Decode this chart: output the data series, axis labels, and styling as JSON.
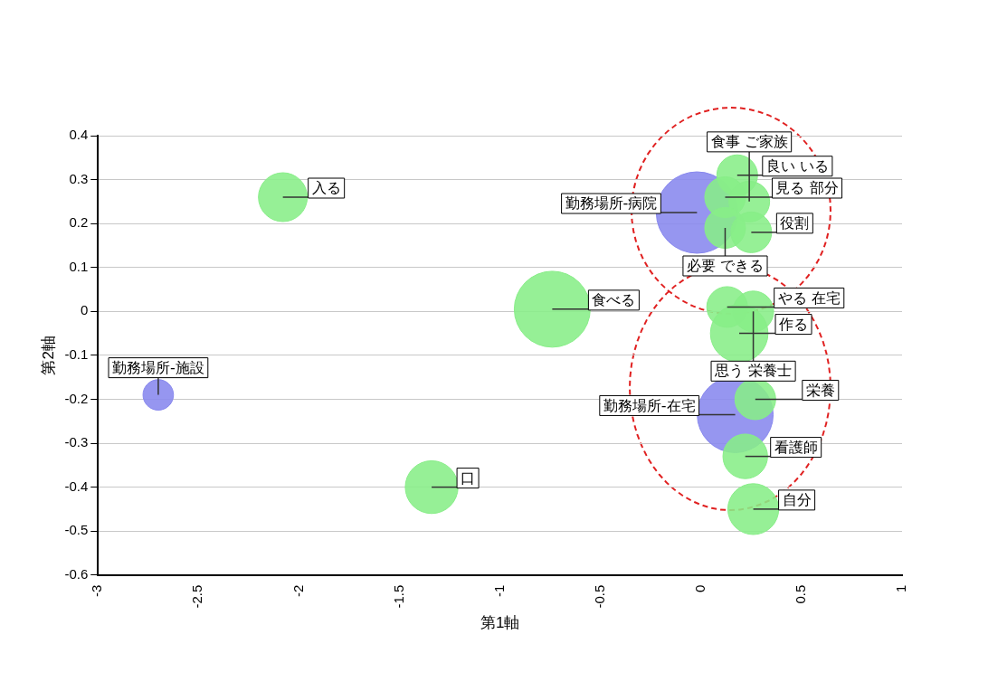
{
  "chart_data": {
    "type": "bubble",
    "xlabel": "第1軸",
    "ylabel": "第2軸",
    "xlim": [
      -3,
      1
    ],
    "xticks": [
      -3,
      -2.5,
      -2,
      -1.5,
      -1,
      -0.5,
      0,
      0.5,
      1
    ],
    "ylim": [
      -0.6,
      0.4
    ],
    "yticks": [
      -0.6,
      -0.5,
      -0.4,
      -0.3,
      -0.2,
      -0.1,
      0,
      0.1,
      0.2,
      0.3,
      0.4
    ],
    "grid": "y",
    "legend": false,
    "series": [
      {
        "color": "#88ee88",
        "x": [
          -2.08,
          -0.74,
          -1.34,
          0.18,
          0.12,
          0.24,
          0.12,
          0.25,
          0.13,
          0.26,
          0.19,
          0.27,
          0.22,
          0.26
        ],
        "values": [
          0.26,
          0.005,
          -0.4,
          0.31,
          0.26,
          0.25,
          0.19,
          0.18,
          0.01,
          0.0,
          -0.05,
          -0.2,
          -0.33,
          -0.45
        ],
        "sizes": [
          0.36,
          0.87,
          0.42,
          0.25,
          0.25,
          0.25,
          0.25,
          0.25,
          0.25,
          0.25,
          0.5,
          0.25,
          0.3,
          0.39
        ]
      },
      {
        "color": "#8888ee",
        "x": [
          -2.7,
          -0.02,
          0.17
        ],
        "values": [
          -0.19,
          0.225,
          -0.235
        ],
        "sizes": [
          0.14,
          1,
          0.87
        ]
      }
    ],
    "annotations": [
      {
        "text": "入る",
        "x": -2.08,
        "y": 0.26
      },
      {
        "text": "勤務場所-施設",
        "x": -2.7,
        "y": -0.19
      },
      {
        "text": "食べる",
        "x": -0.74,
        "y": 0.005
      },
      {
        "text": "口",
        "x": -1.34,
        "y": -0.4
      },
      {
        "text": "良い いる",
        "x": 0.18,
        "y": 0.31
      },
      {
        "text": "勤務場所-病院",
        "x": -0.02,
        "y": 0.225
      },
      {
        "text": "見る 部分",
        "x": 0.12,
        "y": 0.26
      },
      {
        "text": "食事 ご家族",
        "x": 0.24,
        "y": 0.25
      },
      {
        "text": "必要 できる",
        "x": 0.12,
        "y": 0.19
      },
      {
        "text": "役割",
        "x": 0.25,
        "y": 0.18
      },
      {
        "text": "やる 在宅",
        "x": 0.13,
        "y": 0.01
      },
      {
        "text": "思う 栄養士",
        "x": 0.26,
        "y": 0.0
      },
      {
        "text": "作る",
        "x": 0.19,
        "y": -0.05
      },
      {
        "text": "勤務場所-在宅",
        "x": 0.17,
        "y": -0.235
      },
      {
        "text": "栄養",
        "x": 0.27,
        "y": -0.2
      },
      {
        "text": "看護師",
        "x": 0.22,
        "y": -0.33
      },
      {
        "text": "自分",
        "x": 0.26,
        "y": -0.45
      }
    ]
  }
}
